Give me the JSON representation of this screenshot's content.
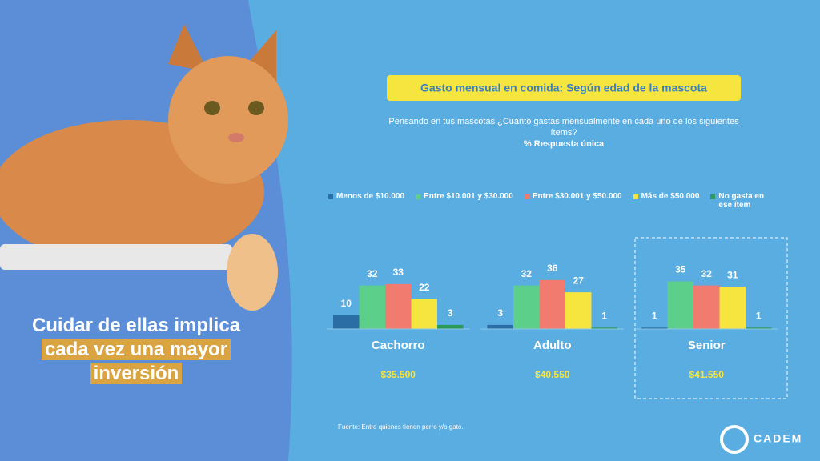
{
  "headline": [
    "Cuidar de ellas implica",
    "cada vez una mayor",
    "inversión"
  ],
  "chart_data": {
    "type": "bar",
    "title": "Gasto mensual en comida: Según edad de la mascota",
    "subtitle": [
      "Pensando en tus mascotas ¿Cuánto gastas mensualmente en cada uno de los siguientes",
      "ítems?"
    ],
    "note": "% Respuesta única",
    "categories": [
      "Cachorro",
      "Adulto",
      "Senior"
    ],
    "category_notes": [
      "$35.500",
      "$40.550",
      "$41.550"
    ],
    "series": [
      {
        "name": "Menos de $10.000",
        "color": "#2b6ea6",
        "values": [
          10,
          3,
          1
        ]
      },
      {
        "name": "Entre $10.001 y $30.000",
        "color": "#5ccf8b",
        "values": [
          32,
          32,
          35
        ]
      },
      {
        "name": "Entre $30.001 y $50.000",
        "color": "#f27b70",
        "values": [
          33,
          36,
          32
        ]
      },
      {
        "name": "Más de $50.000",
        "color": "#f6e43f",
        "values": [
          22,
          27,
          31
        ]
      },
      {
        "name": "No gasta en ese ítem",
        "color": "#2a9b5b",
        "values": [
          3,
          1,
          1
        ]
      }
    ]
  },
  "source": "Fuente: Entre quienes tienen perro y/o gato.",
  "logo": "CADEM"
}
